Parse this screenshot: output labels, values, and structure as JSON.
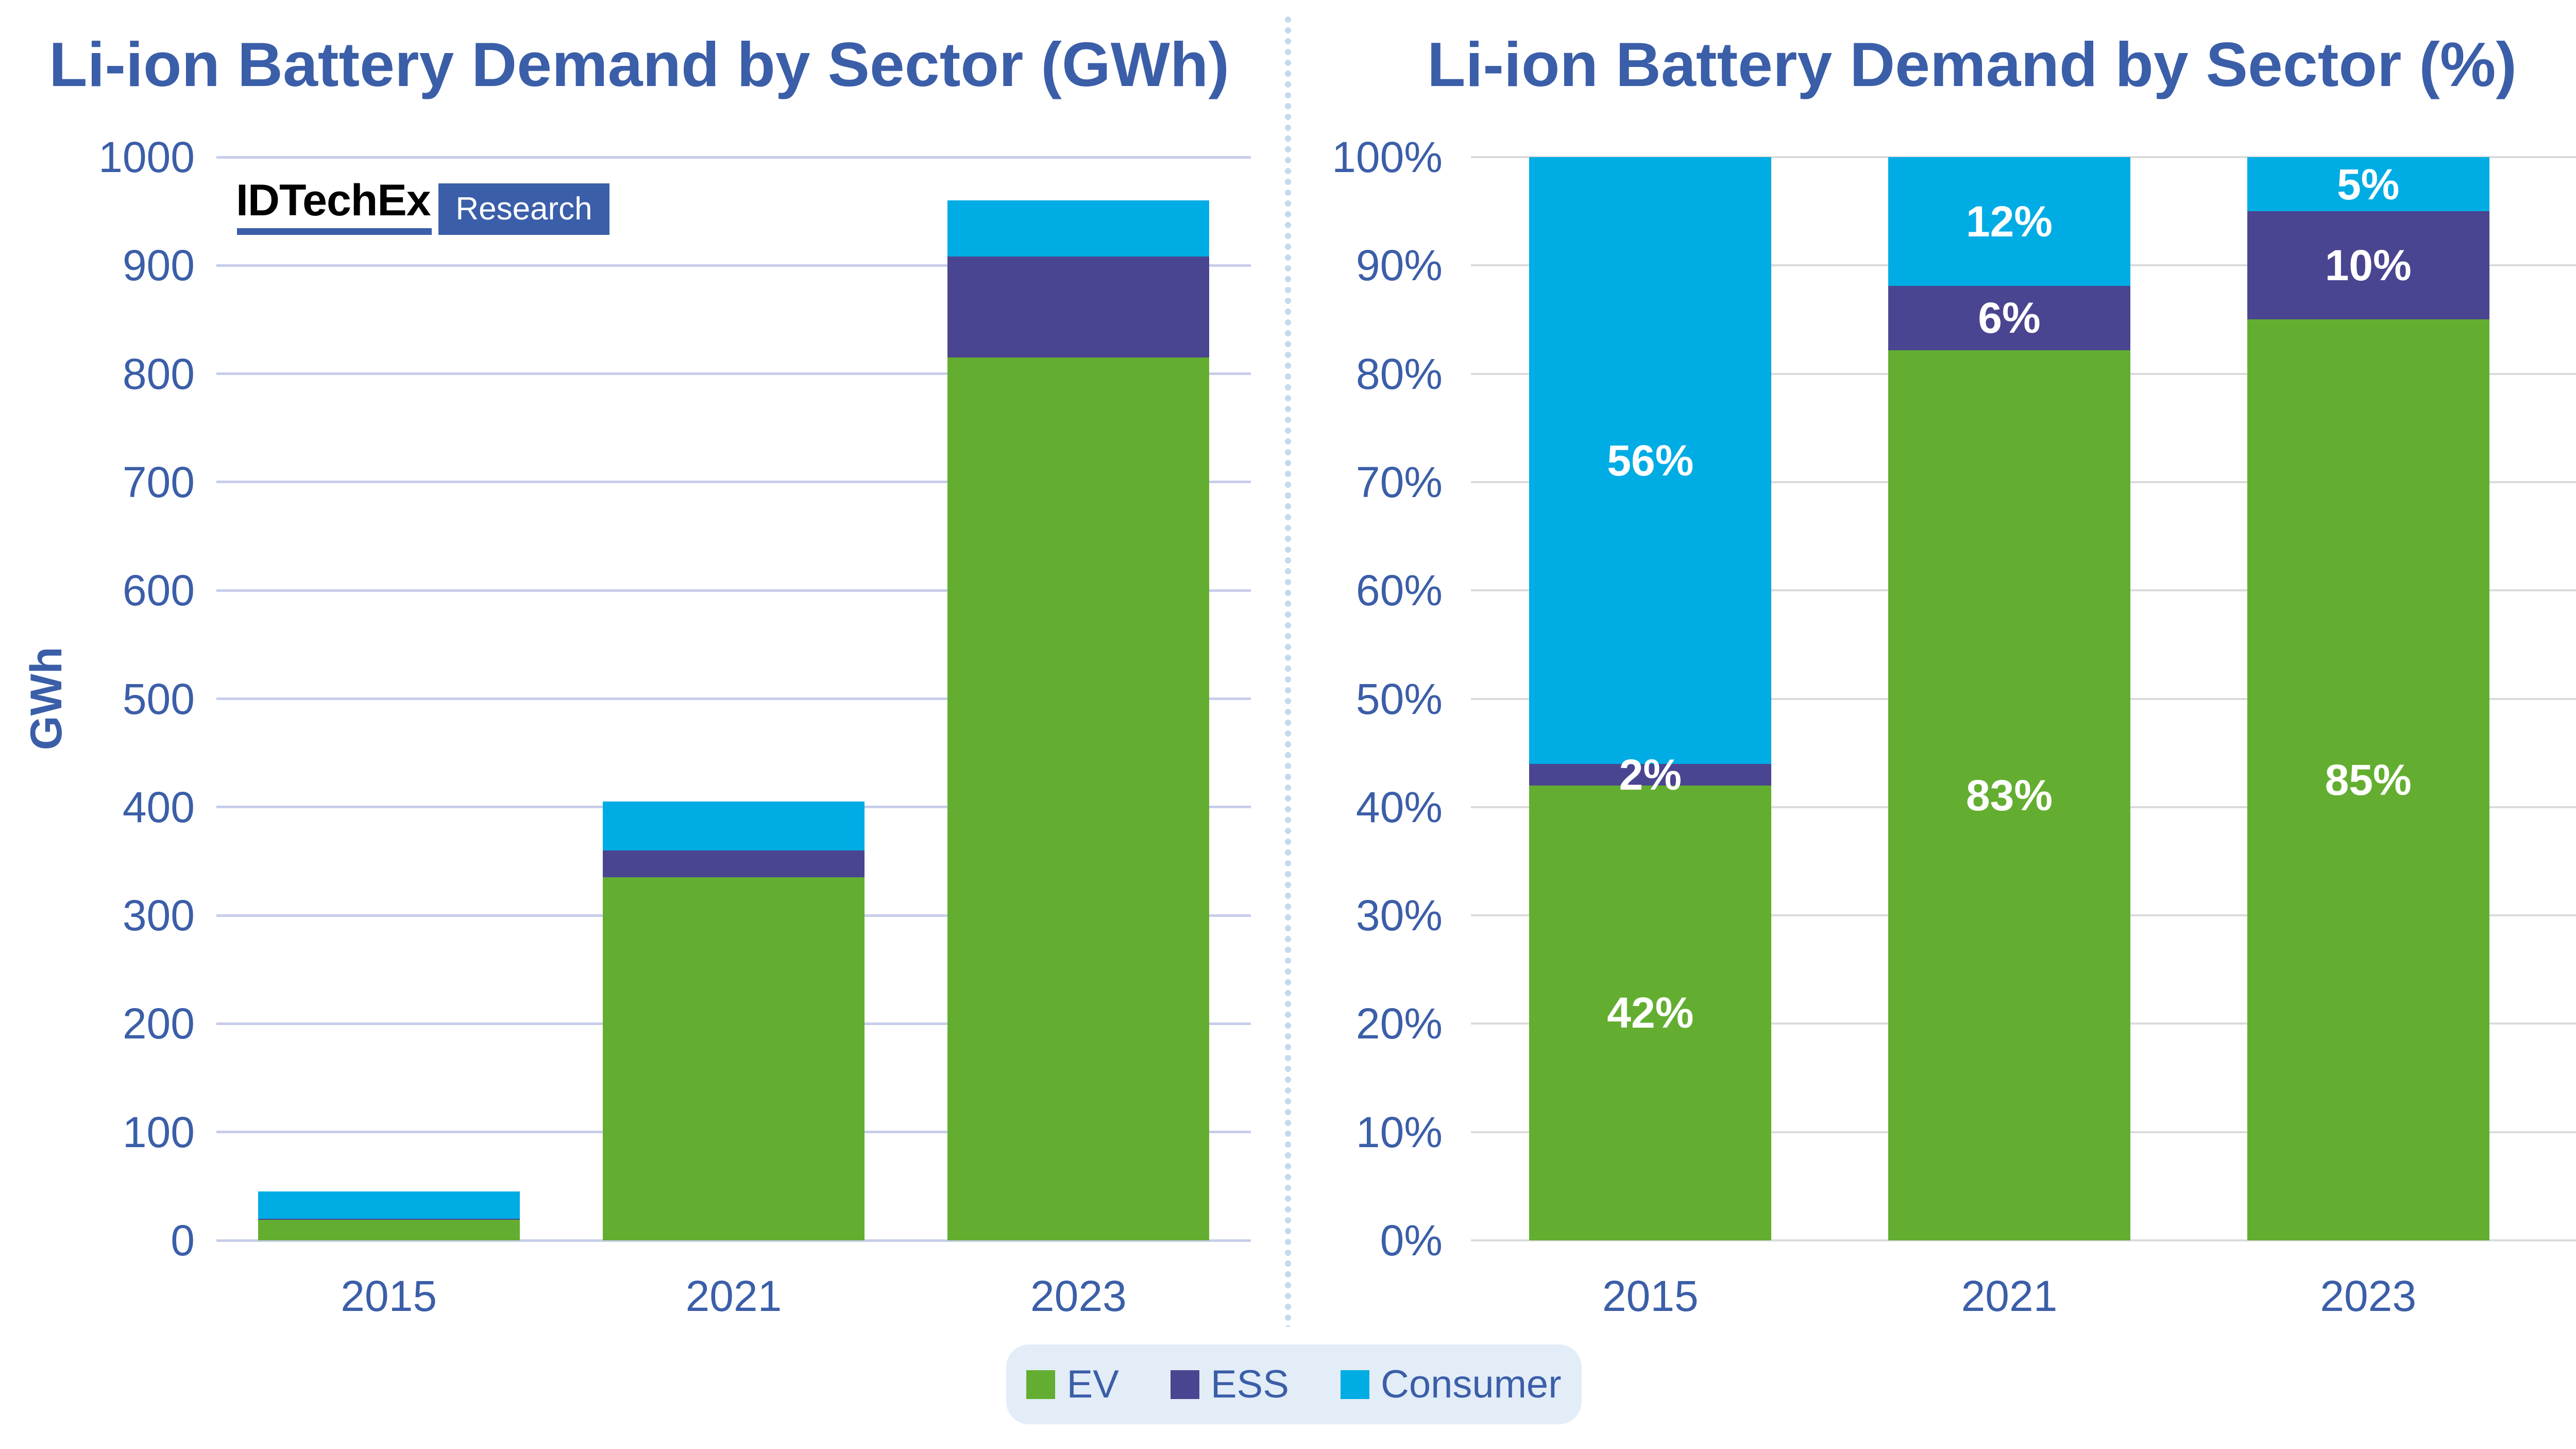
{
  "colors": {
    "ev": "#63AE31",
    "ess": "#4A4590",
    "consumer": "#00ACE4",
    "blue_text": "#3B5EA8",
    "grid_left": "#C7CDE9",
    "grid_right": "#DBDBDB",
    "divider_dot": "#C3D9EE",
    "legend_bg": "#E3EDF8",
    "logo_box": "#3B5EA9",
    "logo_text": "#000000",
    "background": "#FFFFFF",
    "segment_label": "#FFFFFF"
  },
  "logo": {
    "brand": "IDTechEx",
    "sub": "Research"
  },
  "legend": {
    "items": [
      {
        "key": "ev",
        "label": "EV"
      },
      {
        "key": "ess",
        "label": "ESS"
      },
      {
        "key": "consumer",
        "label": "Consumer"
      }
    ]
  },
  "chart_data": [
    {
      "id": "gwh",
      "type": "bar",
      "stacked": true,
      "title": "Li-ion Battery Demand by Sector (GWh)",
      "ylabel": "GWh",
      "xlabel": "",
      "categories": [
        "2015",
        "2021",
        "2023"
      ],
      "series": [
        {
          "key": "ev",
          "name": "EV",
          "values": [
            19,
            335,
            815
          ]
        },
        {
          "key": "ess",
          "name": "ESS",
          "values": [
            1,
            25,
            93
          ]
        },
        {
          "key": "consumer",
          "name": "Consumer",
          "values": [
            25,
            45,
            52
          ]
        }
      ],
      "totals_estimated": [
        45,
        405,
        960
      ],
      "ylim": [
        0,
        1000
      ],
      "yticks": [
        "0",
        "100",
        "200",
        "300",
        "400",
        "500",
        "600",
        "700",
        "800",
        "900",
        "1000"
      ],
      "grid": true,
      "legend_position": "bottom-center-shared"
    },
    {
      "id": "pct",
      "type": "bar",
      "stacked": true,
      "percent": true,
      "title": "Li-ion Battery Demand by Sector (%)",
      "ylabel": "",
      "xlabel": "",
      "categories": [
        "2015",
        "2021",
        "2023"
      ],
      "series": [
        {
          "key": "ev",
          "name": "EV",
          "values": [
            42,
            83,
            85
          ],
          "labels": [
            "42%",
            "83%",
            "85%"
          ]
        },
        {
          "key": "ess",
          "name": "ESS",
          "values": [
            2,
            6,
            10
          ],
          "labels": [
            "2%",
            "6%",
            "10%"
          ]
        },
        {
          "key": "consumer",
          "name": "Consumer",
          "values": [
            56,
            12,
            5
          ],
          "labels": [
            "56%",
            "12%",
            "5%"
          ]
        }
      ],
      "ylim": [
        0,
        100
      ],
      "yticks": [
        "0%",
        "10%",
        "20%",
        "30%",
        "40%",
        "50%",
        "60%",
        "70%",
        "80%",
        "90%",
        "100%"
      ],
      "grid": true,
      "legend_position": "bottom-center-shared"
    }
  ]
}
